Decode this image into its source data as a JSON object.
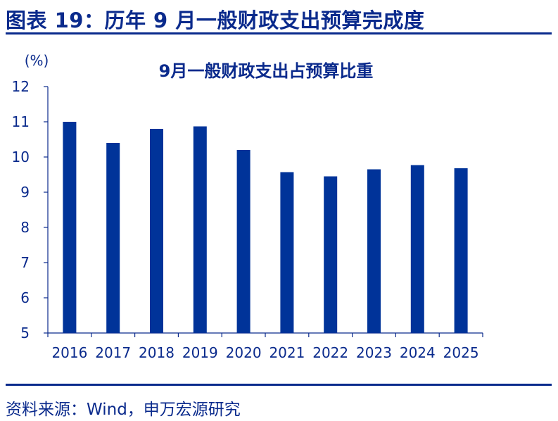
{
  "figure": {
    "title": "图表 19：历年 9 月一般财政支出预算完成度",
    "source": "资料来源：Wind，申万宏源研究"
  },
  "colors": {
    "bar": "#003399",
    "text": "#0a2a8c",
    "axis": "#0a2a8c"
  },
  "chart_data": {
    "type": "bar",
    "title": "9月一般财政支出占预算比重",
    "unit_label": "(%)",
    "categories": [
      "2016",
      "2017",
      "2018",
      "2019",
      "2020",
      "2021",
      "2022",
      "2023",
      "2024",
      "2025"
    ],
    "values": [
      11.0,
      10.4,
      10.8,
      10.87,
      10.2,
      9.57,
      9.45,
      9.65,
      9.77,
      9.68
    ],
    "ylim": [
      5,
      12
    ],
    "yticks": [
      "5",
      "6",
      "7",
      "8",
      "9",
      "10",
      "11",
      "12"
    ],
    "grid": false,
    "legend": "none"
  }
}
